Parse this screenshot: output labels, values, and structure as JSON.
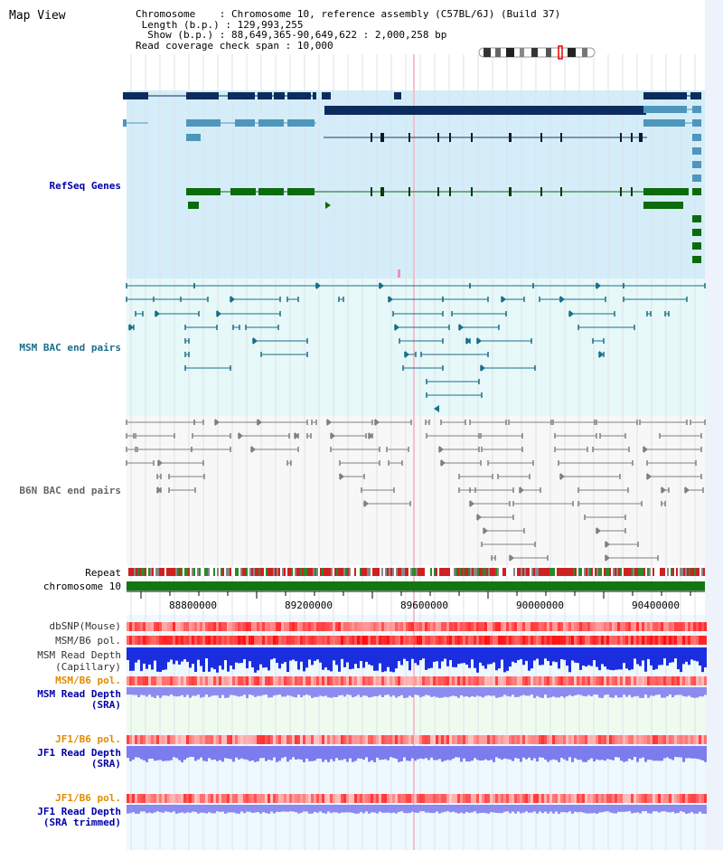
{
  "page_title": "Map View",
  "header": {
    "chromosome_label": "Chromosome",
    "chromosome_value": "Chromosome 10, reference assembly (C57BL/6J) (Build 37)",
    "length_label": "Length (b.p.)",
    "length_value": "129,993,255",
    "show_label": "Show (b.p.)",
    "show_value": "88,649,365-90,649,622 : 2,000,258 bp",
    "coverage_label": "Read coverage check span",
    "coverage_value": "10,000"
  },
  "tracks": {
    "refseq": "RefSeq Genes",
    "msm_bac": "MSM BAC end pairs",
    "b6n_bac": "B6N BAC end pairs",
    "repeat": "Repeat",
    "chromosome": "chromosome 10",
    "dbsnp": "dbSNP(Mouse)",
    "msm_b6_pol_1": "MSM/B6 pol.",
    "msm_depth_cap_1": "MSM Read Depth",
    "msm_depth_cap_2": "(Capillary)",
    "msm_b6_pol_2": "MSM/B6 pol.",
    "msm_depth_sra_1": "MSM Read Depth",
    "msm_depth_sra_2": "(SRA)",
    "jf1_b6_pol_1": "JF1/B6 pol.",
    "jf1_depth_sra_1": "JF1 Read Depth",
    "jf1_depth_sra_2": "(SRA)",
    "jf1_b6_pol_2": "JF1/B6 pol.",
    "jf1_depth_trim_1": "JF1 Read Depth",
    "jf1_depth_trim_2": "(SRA trimmed)"
  },
  "axis_ticks": [
    "88800000",
    "89200000",
    "89600000",
    "90000000",
    "90400000"
  ],
  "colors": {
    "refseq_bg": "#d4edf8",
    "msm_bg": "#e6f8f8",
    "b6n_bg": "#f7f7f7",
    "gene_dark": "#0d2c5e",
    "gene_light": "#4e96bb",
    "gene_green": "#0c6b0c",
    "msm_line": "#1a6e8a",
    "b6n_line": "#808080",
    "label_blue": "#0000aa",
    "label_teal": "#1a6e8a",
    "label_orange": "#e08c00",
    "label_gray": "#666666"
  }
}
